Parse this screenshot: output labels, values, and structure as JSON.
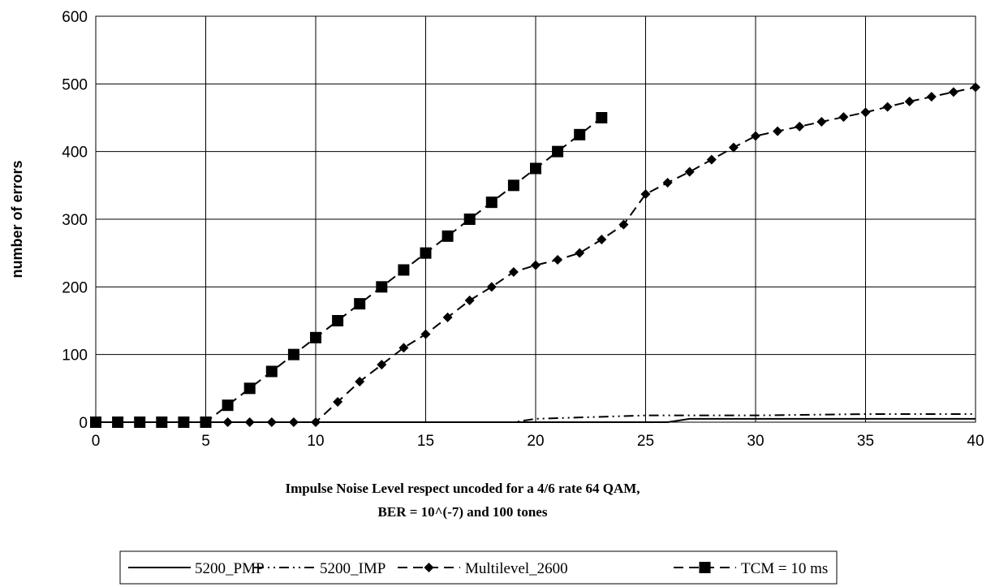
{
  "chart_data": {
    "type": "line",
    "xlabel_line1": "Impulse Noise Level respect uncoded for a 4/6 rate 64 QAM,",
    "xlabel_line2": "BER = 10^(-7) and 100 tones",
    "ylabel": "number of errors",
    "xlim": [
      0,
      40
    ],
    "ylim": [
      0,
      600
    ],
    "x_ticks": [
      0,
      5,
      10,
      15,
      20,
      25,
      30,
      35,
      40
    ],
    "y_ticks": [
      0,
      100,
      200,
      300,
      400,
      500,
      600
    ],
    "grid": true,
    "legend_position": "bottom",
    "series": [
      {
        "name": "5200_PMP",
        "style": "solid",
        "marker": "none",
        "x": [
          0,
          5,
          10,
          15,
          19,
          20,
          25,
          26,
          27,
          30,
          35,
          40
        ],
        "y": [
          0,
          0,
          0,
          0,
          0,
          0,
          0,
          0,
          5,
          5,
          5,
          5
        ]
      },
      {
        "name": "5200_IMP",
        "style": "dashdot",
        "marker": "none",
        "x": [
          0,
          5,
          10,
          15,
          19,
          20,
          25,
          27,
          30,
          35,
          40
        ],
        "y": [
          0,
          0,
          0,
          0,
          0,
          5,
          10,
          10,
          10,
          12,
          12
        ]
      },
      {
        "name": "Multilevel_2600",
        "style": "dashed",
        "marker": "diamond",
        "x": [
          0,
          1,
          2,
          3,
          4,
          5,
          6,
          7,
          8,
          9,
          10,
          11,
          12,
          13,
          14,
          15,
          16,
          17,
          18,
          19,
          20,
          21,
          22,
          23,
          24,
          25,
          26,
          27,
          28,
          29,
          30,
          31,
          32,
          33,
          34,
          35,
          36,
          37,
          38,
          39,
          40
        ],
        "y": [
          0,
          0,
          0,
          0,
          0,
          0,
          0,
          0,
          0,
          0,
          0,
          30,
          60,
          85,
          110,
          130,
          155,
          180,
          200,
          222,
          232,
          240,
          250,
          270,
          292,
          337,
          354,
          370,
          388,
          406,
          423,
          430,
          437,
          444,
          451,
          458,
          466,
          474,
          481,
          488,
          495
        ]
      },
      {
        "name": "TCM = 10 ms",
        "style": "dashed",
        "marker": "square",
        "x": [
          0,
          1,
          2,
          3,
          4,
          5,
          6,
          7,
          8,
          9,
          10,
          11,
          12,
          13,
          14,
          15,
          16,
          17,
          18,
          19,
          20,
          21,
          22,
          23
        ],
        "y": [
          0,
          0,
          0,
          0,
          0,
          0,
          25,
          50,
          75,
          100,
          125,
          150,
          175,
          200,
          225,
          250,
          275,
          300,
          325,
          350,
          375,
          400,
          425,
          450
        ]
      }
    ]
  }
}
